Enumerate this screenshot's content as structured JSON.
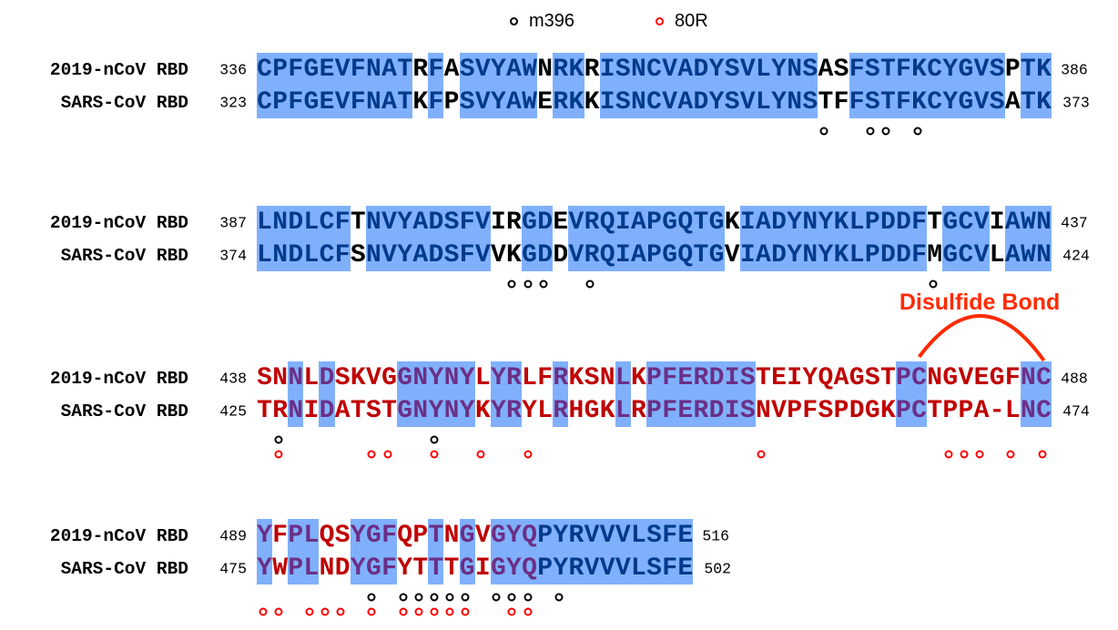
{
  "legend": [
    {
      "label": "m396",
      "color": "#000000"
    },
    {
      "label": "80R",
      "color": "#ff0000"
    }
  ],
  "row_labels": [
    "2019-nCoV RBD",
    "SARS-CoV RBD"
  ],
  "colors": {
    "identical_highlight": "#80b0fc",
    "identical_text": "#003a8c",
    "nonidentical_text": "#000000",
    "red_region_text": "#c00000",
    "red_region_identical_text": "#6b2f86"
  },
  "red_region_residues_2019nCoV": [
    438,
    506
  ],
  "blocks": [
    {
      "seq1": "CPFGEVFNATRFASVYAWNRKRISNCVADYSVLYNSASFSTFKCYGVSPTK",
      "seq2": "CPFGEVFNATKFPSVYAWERKKISNCVADYSVLYNSTFFSTFKCYGVSATK",
      "start1": "336",
      "end1": "386",
      "start2": "323",
      "end2": "373",
      "m396": [
        372,
        375,
        376,
        378
      ],
      "r80": []
    },
    {
      "seq1": "LNDLCFTNVYADSFVIRGDEVRQIAPGQTGKIADYNYKLPDDFTGCVIAWN",
      "seq2": "LNDLCFSNVYADSFVVKGDDVRQIAPGQTGVIADYNYKLPDDFMGCVLAWN",
      "start1": "387",
      "end1": "437",
      "start2": "374",
      "end2": "424",
      "m396": [
        403,
        404,
        405,
        408,
        430
      ],
      "r80": []
    },
    {
      "seq1": "SNNLDSKVGGNYNYLYRLFRKSNLKPFERDISTEIYQAGSTPCNGVEGFNC",
      "seq2": "TRNIDATSTGNYNYKYRYLRHGKLRPFERDISNVPFSPDGKPCTPPA-LNC",
      "start1": "438",
      "end1": "488",
      "start2": "425",
      "end2": "474",
      "m396": [
        439,
        449
      ],
      "r80": [
        439,
        445,
        446,
        449,
        452,
        455,
        470,
        482,
        483,
        484,
        486,
        488
      ]
    },
    {
      "seq1": "YFPLQSYGFQPTNGVGYQPYRVVVLSFE",
      "seq2": "YWPLNDYGFYTTTGIGYQPYRVVVLSFE",
      "start1": "489",
      "end1": "516",
      "start2": "475",
      "end2": "502",
      "m396": [
        496,
        498,
        499,
        500,
        501,
        502,
        504,
        505,
        506,
        508
      ],
      "r80": [
        489,
        490,
        492,
        493,
        494,
        496,
        498,
        499,
        500,
        501,
        502,
        505,
        506
      ]
    }
  ],
  "annotation": {
    "label": "Disulfide Bond",
    "from_residue": 480,
    "to_residue": 488,
    "color": "#ff2a00"
  }
}
